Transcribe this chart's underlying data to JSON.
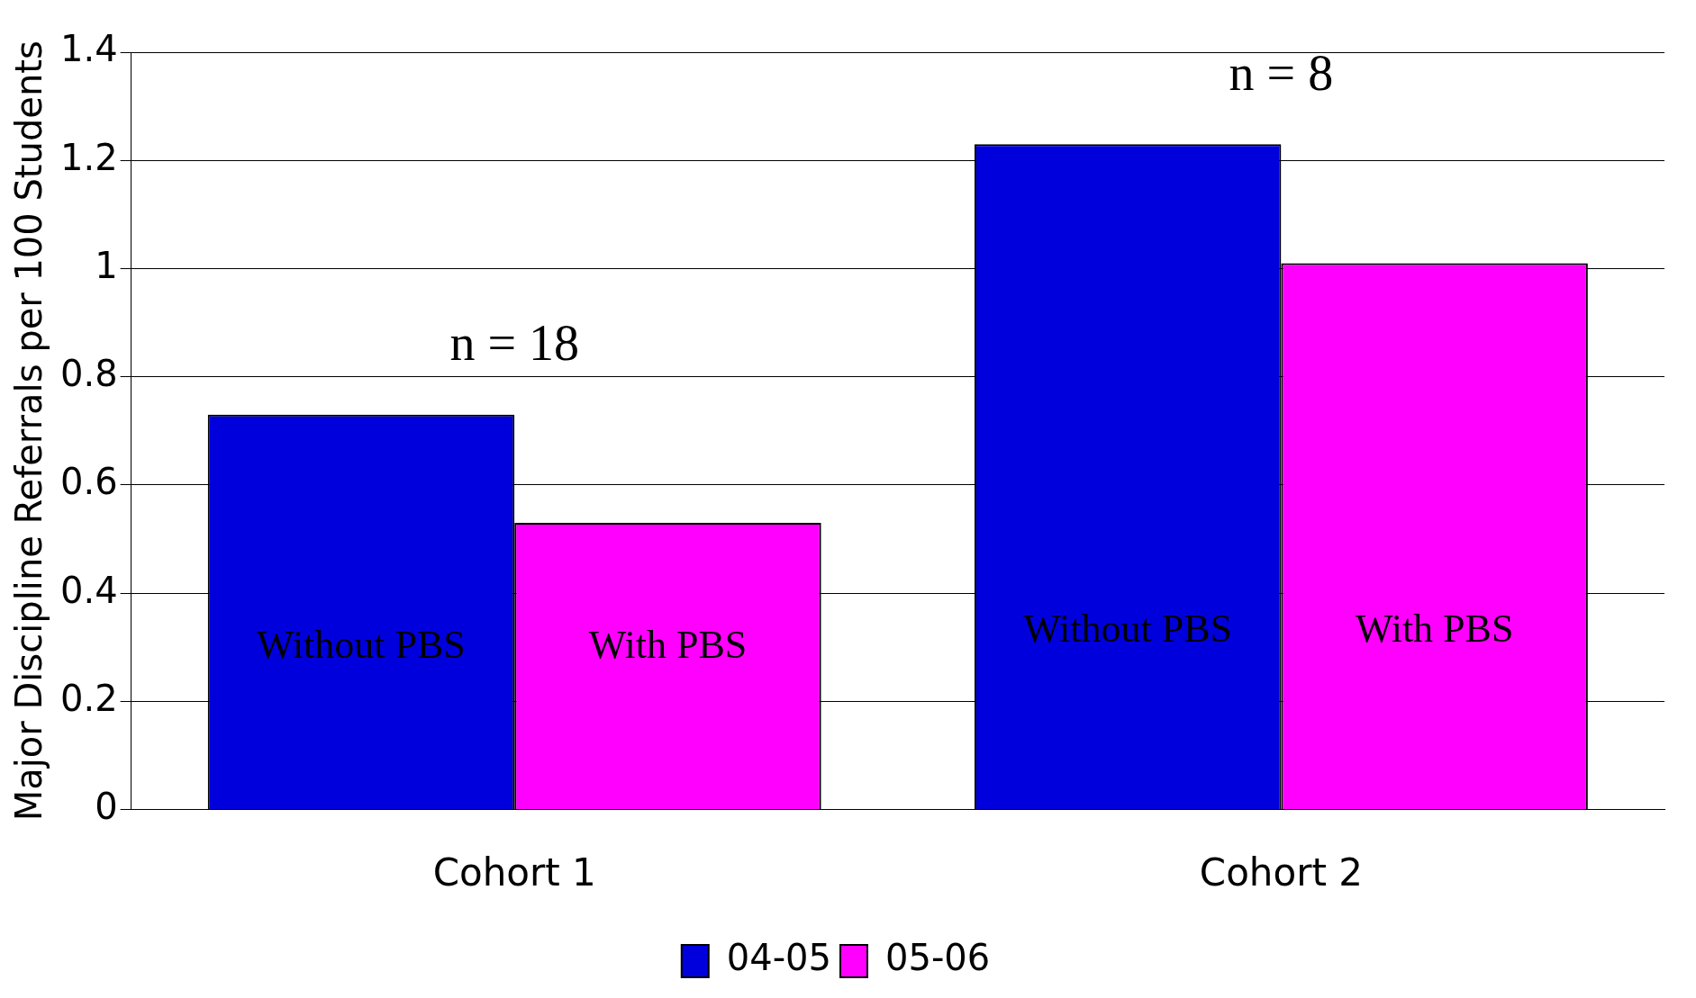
{
  "chart_data": {
    "type": "bar",
    "ylabel": "Major Discipline Referrals per 100 Students",
    "categories": [
      "Cohort 1",
      "Cohort 2"
    ],
    "series": [
      {
        "name": "04-05",
        "color": "#0000dd",
        "values": [
          0.73,
          1.23
        ]
      },
      {
        "name": "05-06",
        "color": "#ff00ff",
        "values": [
          0.53,
          1.01
        ]
      }
    ],
    "ylim": [
      0,
      1.4
    ],
    "yticks": [
      0,
      0.2,
      0.4,
      0.6,
      0.8,
      1,
      1.2,
      1.4
    ],
    "grid": "y",
    "legend": "bottom",
    "annotations": [
      "n = 18",
      "n = 8",
      {
        "text": "Without PBS",
        "x": "Cohort 1",
        "y": 0.3
      },
      {
        "text": "With PBS",
        "x": "Cohort 1",
        "y": 0.3
      },
      {
        "text": "Without PBS",
        "x": "Cohort 2",
        "y": 0.33
      },
      {
        "text": "With PBS",
        "x": "Cohort 2",
        "y": 0.33
      }
    ]
  }
}
